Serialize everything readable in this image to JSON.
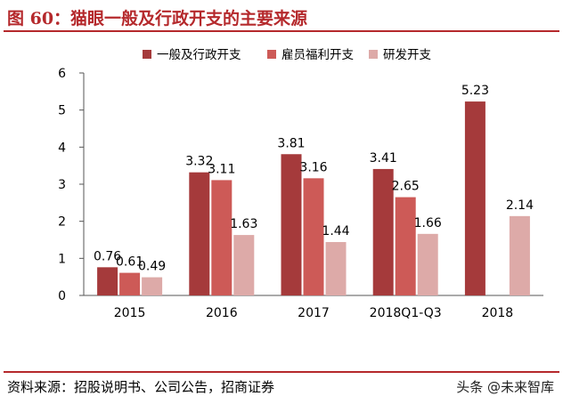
{
  "header": {
    "title": "图 60：猫眼一般及行政开支的主要来源"
  },
  "footer": {
    "source": "资料来源：招股说明书、公司公告，招商证券",
    "watermark": "头条 @未来智库"
  },
  "colors": {
    "accent": "#b5292c",
    "series1": "#a53a3b",
    "series2": "#cd5a57",
    "series3": "#ddaaa8"
  },
  "chart_data": {
    "type": "bar",
    "title": "",
    "xlabel": "",
    "ylabel": "",
    "categories": [
      "2015",
      "2016",
      "2017",
      "2018Q1-Q3",
      "2018"
    ],
    "ylim": [
      0,
      6
    ],
    "yticks": [
      0,
      1,
      2,
      3,
      4,
      5,
      6
    ],
    "legend_position": "top",
    "grid": false,
    "series": [
      {
        "name": "一般及行政开支",
        "color": "#a53a3b",
        "values": [
          0.76,
          3.32,
          3.81,
          3.41,
          5.23
        ]
      },
      {
        "name": "雇员福利开支",
        "color": "#cd5a57",
        "values": [
          0.61,
          3.11,
          3.16,
          2.65,
          null
        ]
      },
      {
        "name": "研发开支",
        "color": "#ddaaa8",
        "values": [
          0.49,
          1.63,
          1.44,
          1.66,
          2.14
        ]
      }
    ]
  }
}
